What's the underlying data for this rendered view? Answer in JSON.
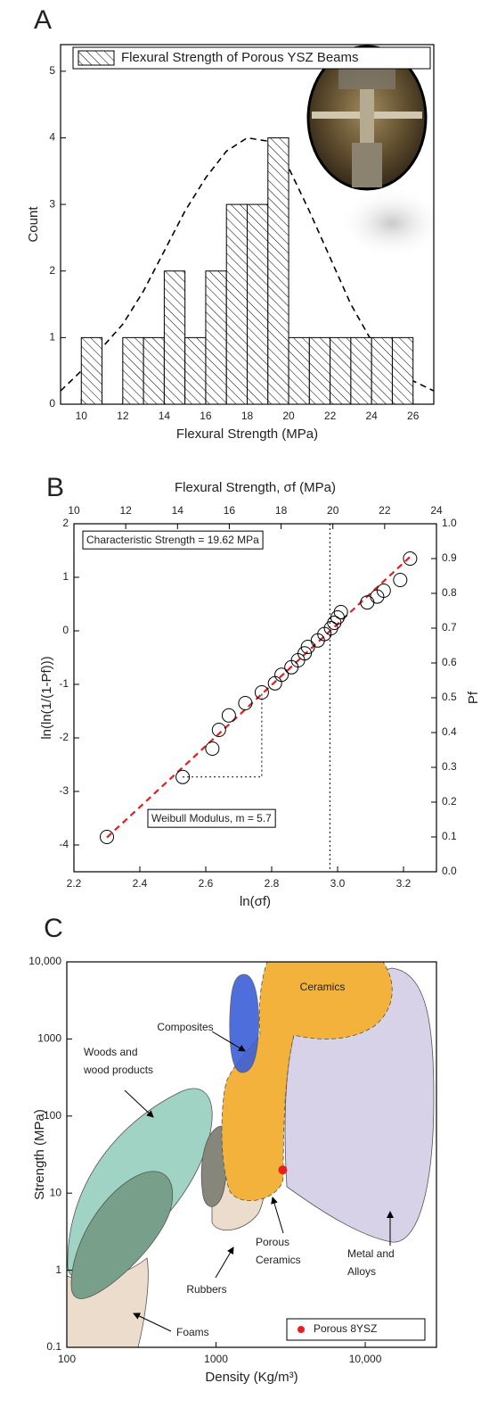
{
  "chart_data": [
    {
      "panel": "A",
      "type": "histogram",
      "bins": [
        10,
        11,
        12,
        13,
        14,
        15,
        16,
        17,
        18,
        19,
        20,
        21,
        22,
        23,
        24,
        25,
        26
      ],
      "series": [
        {
          "name": "Flexural Strength of Porous YSZ Beams",
          "color": "#000000",
          "values": [
            1,
            0,
            1,
            1,
            2,
            1,
            2,
            3,
            3,
            4,
            1,
            1,
            1,
            1,
            1,
            1
          ]
        }
      ],
      "fit": {
        "color": "#000000",
        "x": [
          9,
          10,
          11,
          12,
          13,
          14,
          15,
          16,
          17,
          18,
          19,
          20,
          21,
          22,
          23,
          24,
          25,
          26,
          27
        ],
        "values": [
          0.2,
          0.5,
          0.85,
          1.2,
          1.7,
          2.3,
          2.9,
          3.4,
          3.8,
          4.0,
          3.95,
          3.55,
          2.9,
          2.2,
          1.5,
          0.95,
          0.55,
          0.35,
          0.2
        ]
      },
      "xlabel": "Flexural Strength (MPa)",
      "ylabel": "Count",
      "xlim": [
        9,
        27
      ],
      "ylim": [
        0,
        5.4
      ],
      "xticks": [
        10,
        12,
        14,
        16,
        18,
        20,
        22,
        24,
        26
      ],
      "yticks": [
        0,
        1,
        2,
        3,
        4,
        5
      ],
      "legend": "upper center"
    },
    {
      "panel": "B",
      "type": "scatter",
      "marker": "open-circle",
      "series": [
        {
          "color": "#000000",
          "x": [
            2.3,
            2.53,
            2.62,
            2.64,
            2.67,
            2.72,
            2.77,
            2.81,
            2.83,
            2.86,
            2.88,
            2.9,
            2.91,
            2.94,
            2.96,
            2.98,
            2.99,
            3.0,
            3.01,
            3.09,
            3.12,
            3.14,
            3.19,
            3.22
          ],
          "values": [
            -3.85,
            -2.73,
            -2.2,
            -1.85,
            -1.58,
            -1.35,
            -1.15,
            -0.98,
            -0.82,
            -0.68,
            -0.55,
            -0.42,
            -0.3,
            -0.18,
            -0.06,
            0.05,
            0.15,
            0.25,
            0.35,
            0.53,
            0.64,
            0.75,
            0.95,
            1.35
          ]
        }
      ],
      "fit": {
        "color": "#e02020",
        "x": [
          2.3,
          3.23
        ],
        "values": [
          -3.86,
          1.44
        ]
      },
      "vline_x": 2.9766,
      "annotations": [
        "Characteristic Strength = 19.62 MPa",
        "Weibull Modulus, m = 5.7"
      ],
      "xlabel": "ln(σf)",
      "ylabel": "ln(ln(1/(1-Pf)))",
      "x2label": "Flexural Strength, σf (MPa)",
      "y2label": "Pf",
      "xlim": [
        2.2,
        3.3
      ],
      "ylim": [
        -4.5,
        2
      ],
      "x2lim": [
        10,
        24
      ],
      "y2lim": [
        0,
        1
      ],
      "xticks": [
        2.2,
        2.4,
        2.6,
        2.8,
        {
          "value": 3,
          "label": "3.0"
        },
        3.2
      ],
      "yticks": [
        -4,
        -3,
        -2,
        -1,
        0,
        1,
        2
      ],
      "x2ticks": [
        10,
        12,
        14,
        16,
        18,
        20,
        22,
        24
      ],
      "y2ticks": [
        {
          "value": 0,
          "label": "0.0"
        },
        0.1,
        0.2,
        0.3,
        0.4,
        0.5,
        0.6,
        0.7,
        0.8,
        0.9,
        {
          "value": 1,
          "label": "1.0"
        }
      ]
    },
    {
      "panel": "C",
      "type": "scatter",
      "marker": "filled-circle",
      "xscale": "log",
      "yscale": "log",
      "series": [
        {
          "name": "Porous 8YSZ",
          "color": "#e8201c",
          "x": [
            2800
          ],
          "values": [
            20
          ]
        }
      ],
      "annotations": [
        [
          "Composites"
        ],
        [
          "Ceramics"
        ],
        [
          "Woods and",
          "wood products"
        ],
        [
          "Porous",
          "Ceramics"
        ],
        [
          "Rubbers"
        ],
        [
          "Metal and",
          "Alloys"
        ],
        [
          "Foams"
        ]
      ],
      "xlabel": "Density (Kg/m³)",
      "ylabel": "Strength (MPa)",
      "xlim": [
        100,
        30000
      ],
      "ylim": [
        0.1,
        10000
      ],
      "xticks": [
        100,
        1000,
        {
          "value": 10000,
          "label": "10,000"
        }
      ],
      "yticks": [
        0.1,
        1,
        10,
        100,
        1000,
        {
          "value": 10000,
          "label": "10,000"
        }
      ],
      "legend": "lower right"
    }
  ]
}
